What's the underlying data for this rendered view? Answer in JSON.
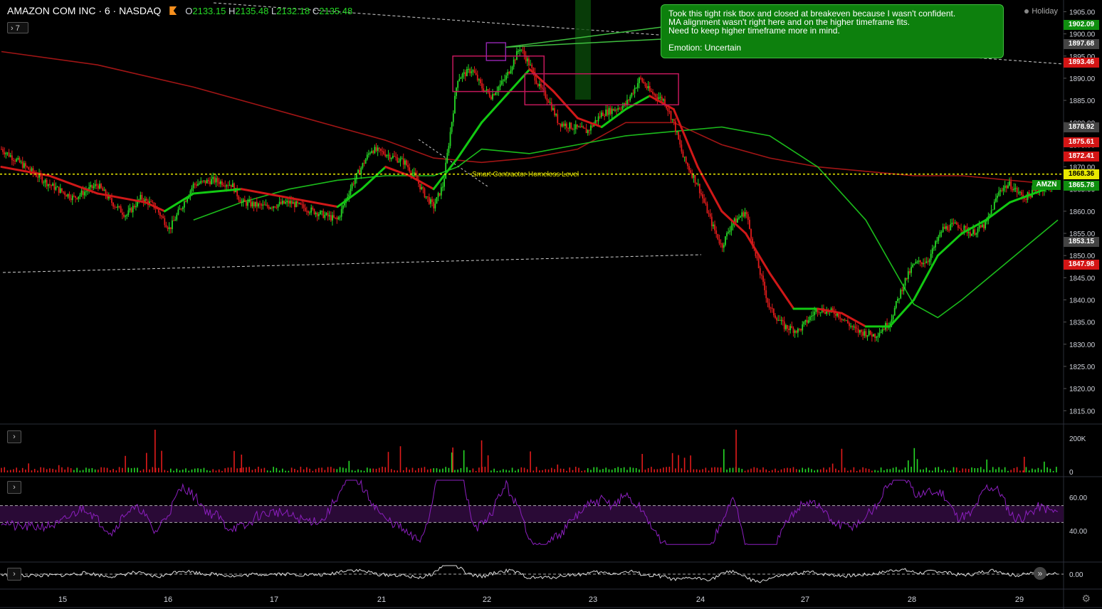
{
  "header": {
    "symbol": "AMAZON COM INC · 6 · NASDAQ",
    "o_label": "O",
    "o_value": "2133.15",
    "h_label": "H",
    "h_value": "2135.48",
    "l_label": "L",
    "l_value": "2132.18",
    "c_label": "C",
    "c_value": "2135.48",
    "indicator_toggle": "7"
  },
  "status": {
    "market": "Holiday"
  },
  "note": {
    "lines": [
      "Took this tight risk tbox and closed at breakeven because I wasn't confident.",
      "MA alignment wasn't right here and on the higher timeframe fits.",
      "Need to keep higher timeframe more in mind."
    ],
    "emotion": "Emotion: Uncertain"
  },
  "colors": {
    "up": "#26d926",
    "down": "#e21b1b",
    "ma_fast_green": "#1bbb1b",
    "ma_slow_red": "#a11515",
    "level": "#e8e800",
    "note_bg": "#0d800d",
    "box_pink": "#c2185b",
    "box_purple": "#8e24aa",
    "rsi": "#8c1fbf"
  },
  "chart_data": {
    "type": "candlestick",
    "x_ticks": [
      "15",
      "16",
      "17",
      "21",
      "22",
      "23",
      "24",
      "27",
      "28",
      "29"
    ],
    "y_ticks": [
      1815,
      1820,
      1825,
      1830,
      1835,
      1840,
      1845,
      1850,
      1855,
      1860,
      1865,
      1870,
      1875,
      1880,
      1885,
      1890,
      1895,
      1900,
      1905
    ],
    "y_tick_labels": [
      "1815.00",
      "1820.00",
      "1825.00",
      "1830.00",
      "1835.00",
      "1840.00",
      "1845.00",
      "1850.00",
      "1855.00",
      "1860.00",
      "1865.00",
      "1870.00",
      "1875.00",
      "1880.00",
      "1885.00",
      "1890.00",
      "1895.00",
      "1900.00",
      "1905.00"
    ],
    "ylim": [
      1812,
      1907
    ],
    "price_path": [
      [
        0,
        1874
      ],
      [
        0.5,
        1870
      ],
      [
        1,
        1866
      ],
      [
        1.5,
        1863
      ],
      [
        2,
        1866
      ],
      [
        2.3,
        1862
      ],
      [
        2.6,
        1859
      ],
      [
        2.9,
        1863
      ],
      [
        3.2,
        1861
      ],
      [
        3.5,
        1856
      ],
      [
        4,
        1866
      ],
      [
        4.4,
        1867
      ],
      [
        4.8,
        1866
      ],
      [
        5,
        1862
      ],
      [
        5.5,
        1861
      ],
      [
        6,
        1862
      ],
      [
        6.5,
        1860
      ],
      [
        7,
        1858
      ],
      [
        7.3,
        1866
      ],
      [
        7.7,
        1874
      ],
      [
        8,
        1873
      ],
      [
        8.4,
        1871
      ],
      [
        8.6,
        1868
      ],
      [
        8.8,
        1864
      ],
      [
        9,
        1861
      ],
      [
        9.2,
        1866
      ],
      [
        9.5,
        1890
      ],
      [
        9.8,
        1892
      ],
      [
        10,
        1888
      ],
      [
        10.2,
        1886
      ],
      [
        10.5,
        1890
      ],
      [
        10.8,
        1897
      ],
      [
        11,
        1893
      ],
      [
        11.2,
        1888
      ],
      [
        11.4,
        1885
      ],
      [
        11.6,
        1880
      ],
      [
        11.9,
        1879
      ],
      [
        12.2,
        1878
      ],
      [
        12.5,
        1882
      ],
      [
        13,
        1884
      ],
      [
        13.3,
        1890
      ],
      [
        13.5,
        1887
      ],
      [
        13.8,
        1885
      ],
      [
        14,
        1880
      ],
      [
        14.2,
        1872
      ],
      [
        14.5,
        1866
      ],
      [
        14.8,
        1857
      ],
      [
        15,
        1852
      ],
      [
        15.2,
        1857
      ],
      [
        15.5,
        1860
      ],
      [
        15.7,
        1850
      ],
      [
        16,
        1838
      ],
      [
        16.3,
        1834
      ],
      [
        16.6,
        1833
      ],
      [
        17,
        1838
      ],
      [
        17.4,
        1837
      ],
      [
        17.8,
        1833
      ],
      [
        18.2,
        1832
      ],
      [
        18.5,
        1835
      ],
      [
        18.8,
        1844
      ],
      [
        19,
        1848
      ],
      [
        19.3,
        1849
      ],
      [
        19.6,
        1856
      ],
      [
        19.9,
        1857
      ],
      [
        20.2,
        1855
      ],
      [
        20.5,
        1857
      ],
      [
        20.8,
        1865
      ],
      [
        21,
        1866
      ],
      [
        21.3,
        1863
      ],
      [
        21.6,
        1865
      ],
      [
        22,
        1866
      ]
    ],
    "ma_fast_path": [
      [
        0,
        1870
      ],
      [
        1,
        1868
      ],
      [
        2,
        1864
      ],
      [
        3,
        1862
      ],
      [
        3.4,
        1860
      ],
      [
        4,
        1864
      ],
      [
        5,
        1865
      ],
      [
        6,
        1863
      ],
      [
        7,
        1861
      ],
      [
        7.5,
        1865
      ],
      [
        8,
        1870
      ],
      [
        8.5,
        1868
      ],
      [
        9,
        1865
      ],
      [
        9.5,
        1872
      ],
      [
        10,
        1880
      ],
      [
        10.5,
        1886
      ],
      [
        11,
        1892
      ],
      [
        11.5,
        1887
      ],
      [
        12,
        1881
      ],
      [
        12.5,
        1879
      ],
      [
        13,
        1883
      ],
      [
        13.5,
        1886
      ],
      [
        14,
        1883
      ],
      [
        14.5,
        1870
      ],
      [
        15,
        1860
      ],
      [
        15.5,
        1855
      ],
      [
        16,
        1846
      ],
      [
        16.5,
        1838
      ],
      [
        17,
        1838
      ],
      [
        17.5,
        1837
      ],
      [
        18,
        1834
      ],
      [
        18.5,
        1834
      ],
      [
        19,
        1840
      ],
      [
        19.5,
        1850
      ],
      [
        20,
        1855
      ],
      [
        20.5,
        1858
      ],
      [
        21,
        1862
      ],
      [
        21.5,
        1864
      ],
      [
        22,
        1866
      ]
    ],
    "ma_green_slow_path": [
      [
        4,
        1858
      ],
      [
        5,
        1862
      ],
      [
        6,
        1865
      ],
      [
        7,
        1867
      ],
      [
        8,
        1868
      ],
      [
        9,
        1868
      ],
      [
        9.5,
        1870
      ],
      [
        10,
        1874
      ],
      [
        11,
        1873
      ],
      [
        12,
        1875
      ],
      [
        13,
        1877
      ],
      [
        14,
        1878
      ],
      [
        15,
        1879
      ],
      [
        16,
        1877
      ],
      [
        17,
        1870
      ],
      [
        18,
        1858
      ],
      [
        19,
        1839
      ],
      [
        19.5,
        1836
      ],
      [
        20,
        1840
      ],
      [
        21,
        1849
      ],
      [
        22,
        1858
      ]
    ],
    "ma_red_slow_path": [
      [
        0,
        1896
      ],
      [
        2,
        1893
      ],
      [
        4,
        1888
      ],
      [
        6,
        1882
      ],
      [
        8,
        1876
      ],
      [
        9,
        1872
      ],
      [
        10,
        1871
      ],
      [
        11,
        1872
      ],
      [
        12,
        1874
      ],
      [
        13,
        1880
      ],
      [
        14,
        1880
      ],
      [
        15,
        1875
      ],
      [
        16,
        1872
      ],
      [
        17,
        1870
      ],
      [
        18,
        1869
      ],
      [
        19,
        1868
      ],
      [
        20,
        1868
      ],
      [
        21,
        1867
      ],
      [
        22,
        1866
      ]
    ],
    "horizontal_level": {
      "value": 1868.36,
      "label": "Smart Contractor Homeless Level"
    },
    "price_labels": [
      {
        "text": "1902.09",
        "value": 1902.09,
        "bg": "#0f8f0f"
      },
      {
        "text": "1897.68",
        "value": 1897.68,
        "bg": "#444444"
      },
      {
        "text": "1893.46",
        "value": 1893.46,
        "bg": "#d41515"
      },
      {
        "text": "1878.92",
        "value": 1878.92,
        "bg": "#444444"
      },
      {
        "text": "1875.61",
        "value": 1875.61,
        "bg": "#d41515"
      },
      {
        "text": "1872.41",
        "value": 1872.41,
        "bg": "#d41515"
      },
      {
        "text": "1868.36",
        "value": 1868.36,
        "bg": "#e8e800"
      },
      {
        "text": "1865.78",
        "value": 1865.78,
        "bg": "#0f8f0f"
      },
      {
        "text": "1853.15",
        "value": 1853.15,
        "bg": "#444444"
      },
      {
        "text": "1847.98",
        "value": 1847.98,
        "bg": "#d41515"
      }
    ],
    "symbol_tag": "AMZN",
    "boxes": [
      {
        "x0": 9.4,
        "x1": 11.3,
        "top": 1895,
        "bottom": 1887,
        "color": "box_pink"
      },
      {
        "x0": 10.9,
        "x1": 14.1,
        "top": 1891,
        "bottom": 1884,
        "color": "box_pink"
      },
      {
        "x0": 10.1,
        "x1": 10.5,
        "top": 1898,
        "bottom": 1894,
        "color": "box_purple"
      }
    ],
    "volume_ticks": [
      "200K",
      "0"
    ],
    "rsi_ticks": [
      "60.00",
      "40.00"
    ],
    "rsi_band": [
      45,
      55
    ],
    "osc_ticks": [
      "0.00"
    ]
  }
}
